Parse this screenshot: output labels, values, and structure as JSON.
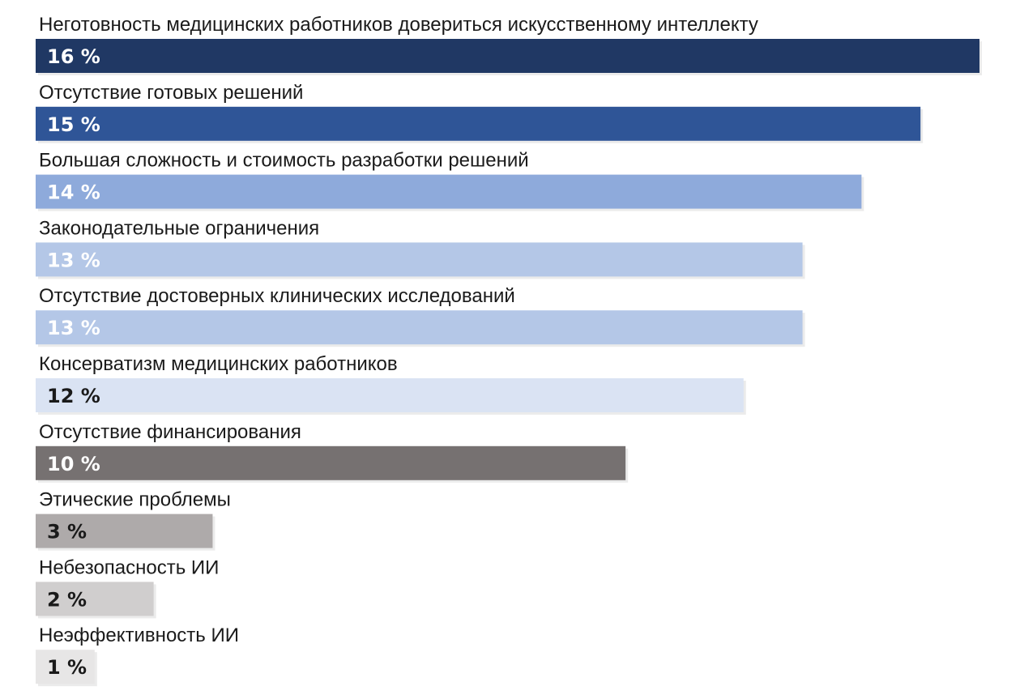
{
  "chart_data": {
    "type": "bar",
    "orientation": "horizontal",
    "title": "",
    "xlabel": "",
    "ylabel": "",
    "categories": [
      "Неготовность медицинских работников довериться искусственному интеллекту",
      "Отсутствие готовых решений",
      "Большая сложность и стоимость разработки решений",
      "Законодательные ограничения",
      "Отсутствие достоверных клинических исследований",
      "Консерватизм медицинских работников",
      "Отсутствие финансирования",
      "Этические проблемы",
      "Небезопасность ИИ",
      "Неэффективность ИИ"
    ],
    "values": [
      16,
      15,
      14,
      13,
      13,
      12,
      10,
      3,
      2,
      1
    ],
    "value_labels": [
      "16 %",
      "15 %",
      "14 %",
      "13 %",
      "13 %",
      "12 %",
      "10 %",
      "3 %",
      "2 %",
      "1 %"
    ],
    "bar_colors": [
      "#203864",
      "#2f5597",
      "#8eaadb",
      "#b4c7e7",
      "#b4c7e7",
      "#dae3f3",
      "#767171",
      "#aeaaaa",
      "#d0cece",
      "#e7e6e6"
    ],
    "value_label_colors": [
      "#ffffff",
      "#ffffff",
      "#ffffff",
      "#ffffff",
      "#ffffff",
      "#1a1a1a",
      "#ffffff",
      "#1a1a1a",
      "#1a1a1a",
      "#1a1a1a"
    ],
    "grid": false,
    "legend": "none"
  }
}
